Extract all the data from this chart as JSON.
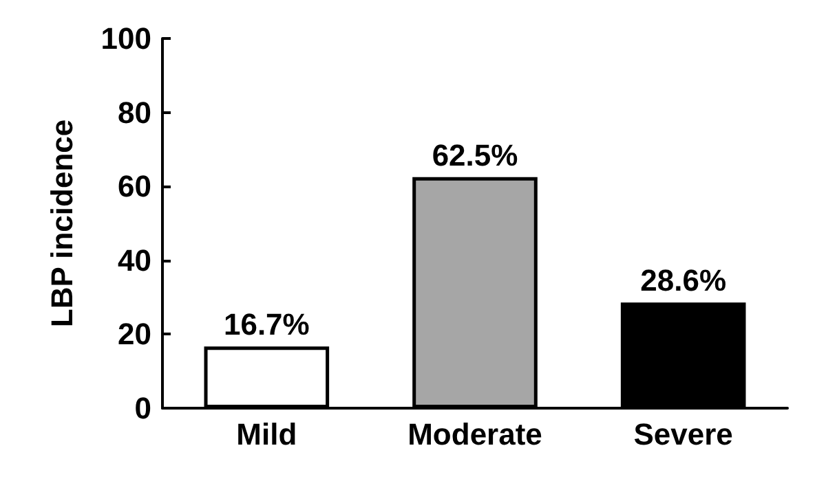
{
  "chart_data": {
    "type": "bar",
    "ylabel": "LBP incidence",
    "categories": [
      "Mild",
      "Moderate",
      "Severe"
    ],
    "values": [
      16.7,
      62.5,
      28.6
    ],
    "colors": [
      "#ffffff",
      "#a6a6a6",
      "#000000"
    ],
    "value_labels": [
      "16.7%",
      "62.5%",
      "28.6%"
    ],
    "ylim": [
      0,
      100
    ],
    "yticks": [
      0,
      20,
      40,
      60,
      80,
      100
    ],
    "grid": false
  }
}
